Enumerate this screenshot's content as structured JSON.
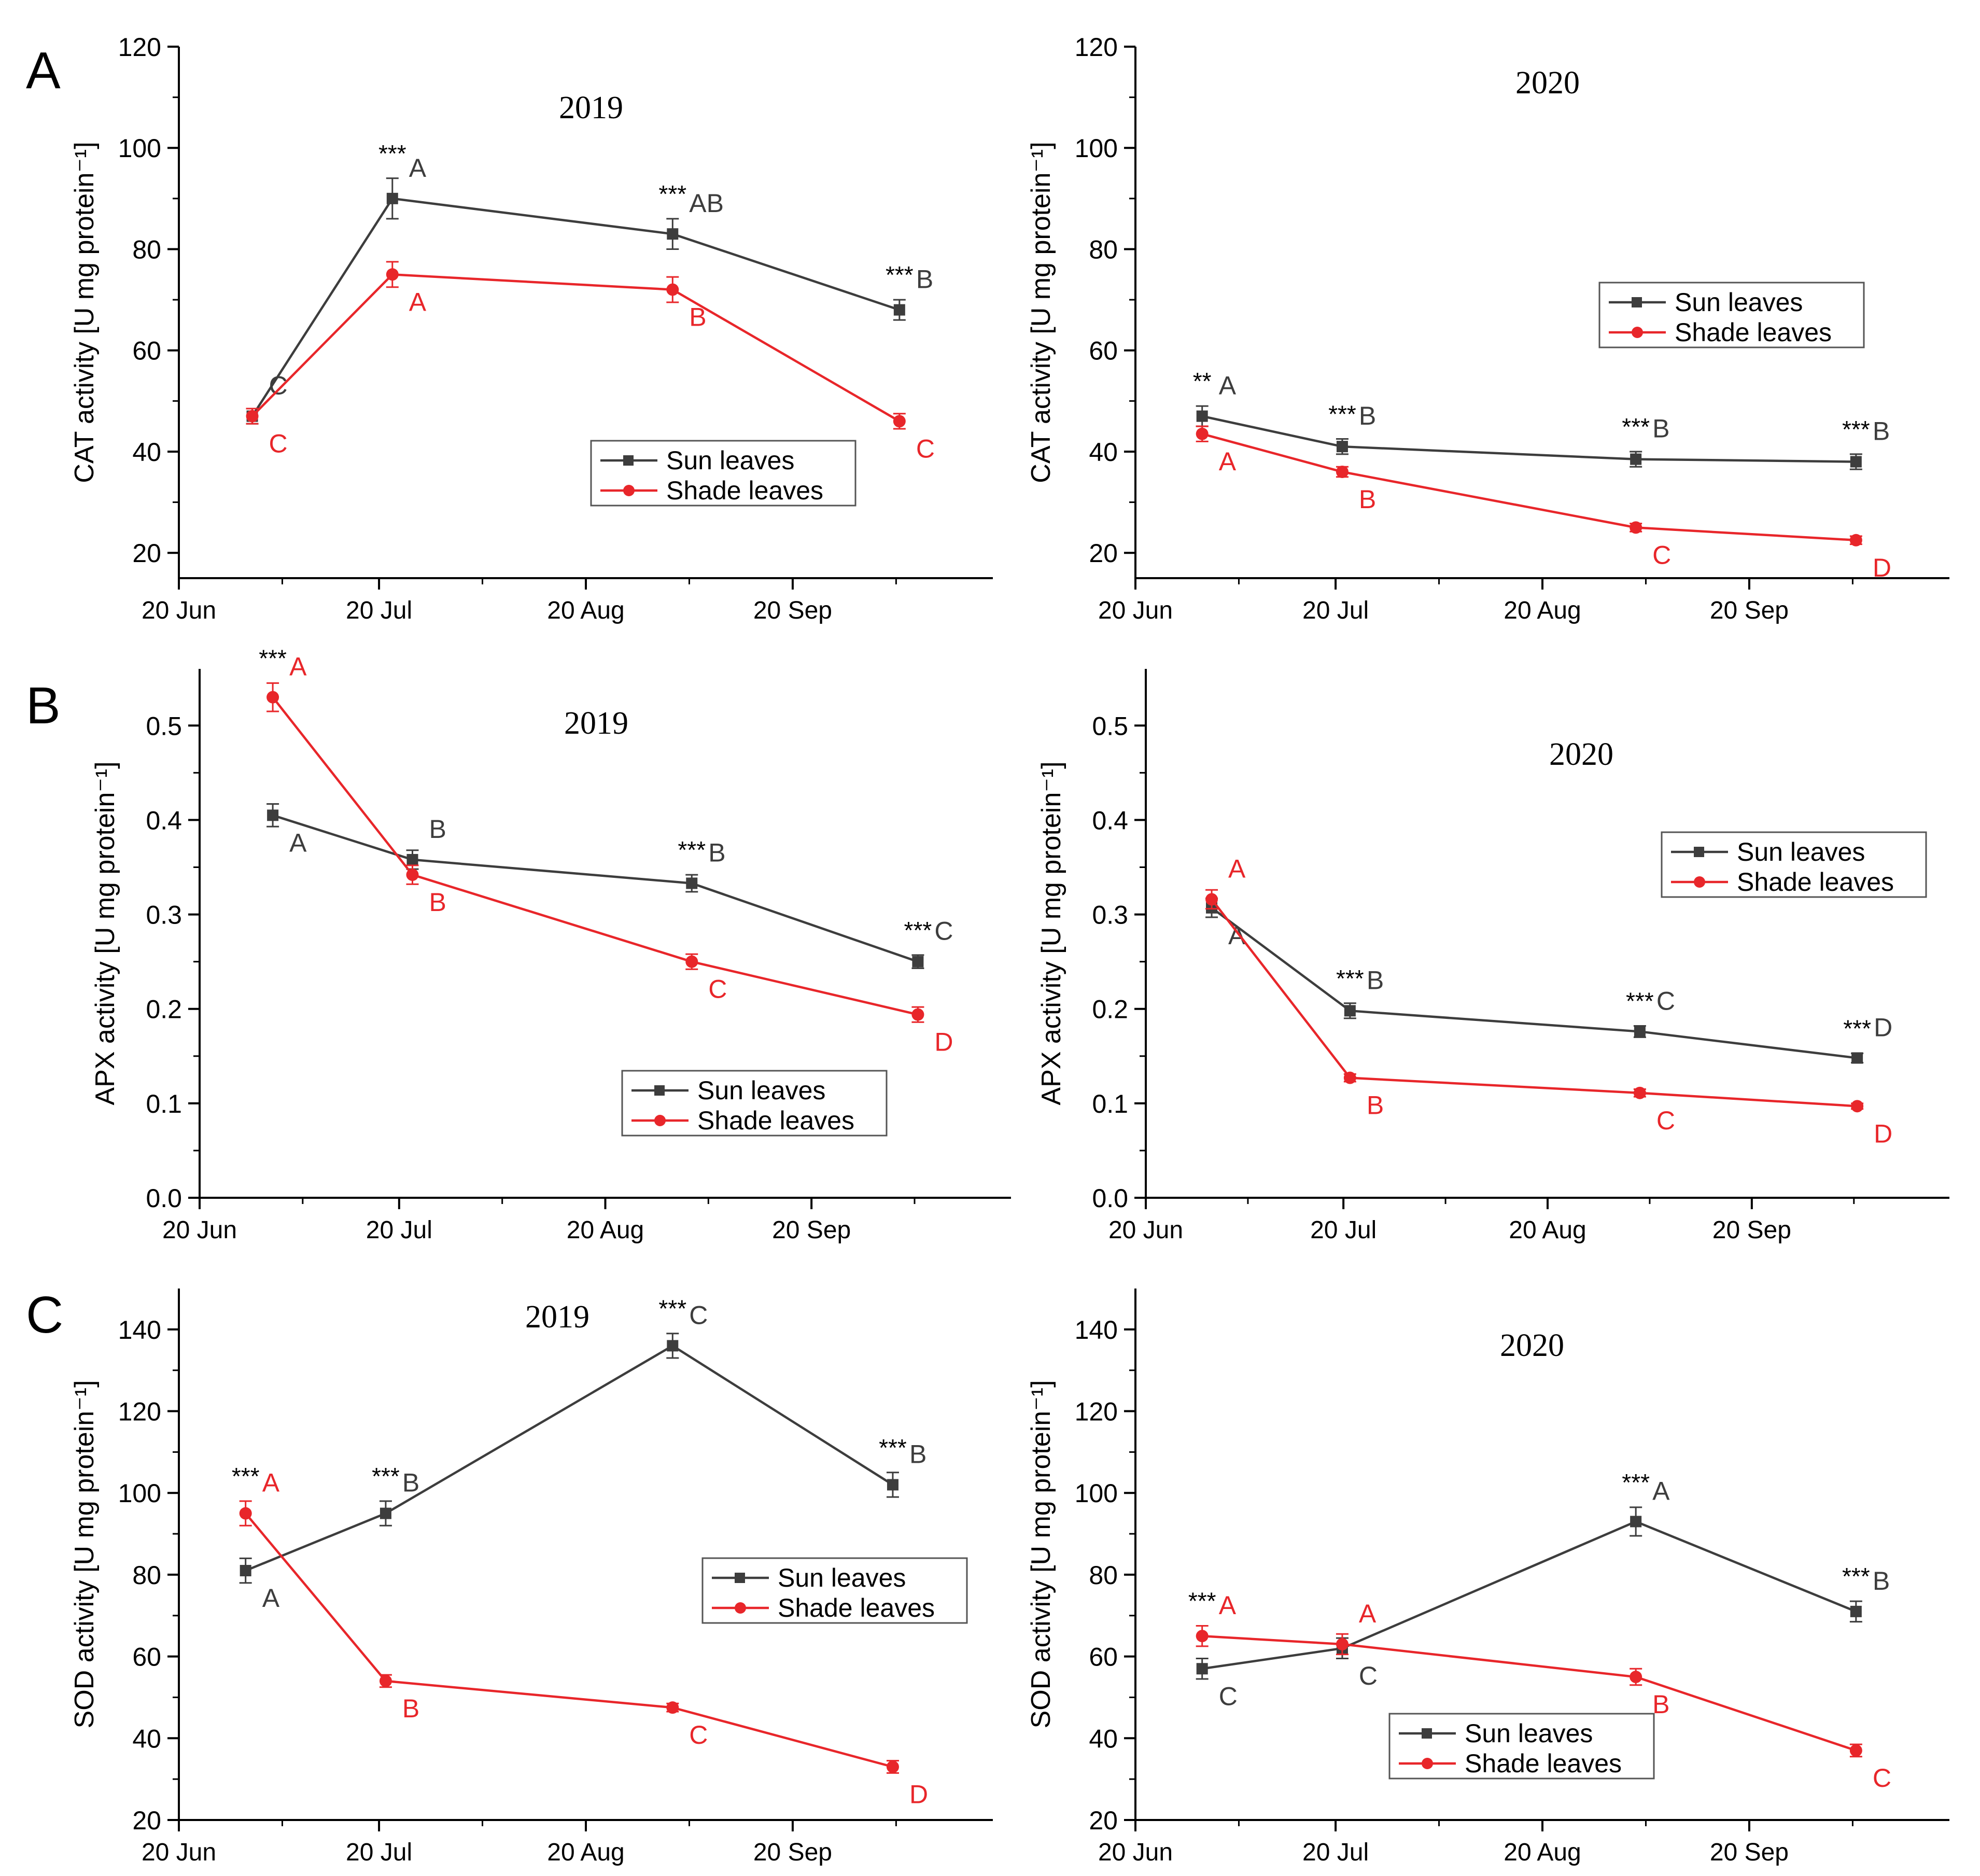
{
  "figure": {
    "row_labels": [
      "A",
      "B",
      "C"
    ],
    "x_tick_labels": [
      "20 Jun",
      "20 Jul",
      "20 Aug",
      "20 Sep"
    ]
  },
  "colors": {
    "sun": "#3d3d3d",
    "shade": "#e8262a",
    "axis": "#000000"
  },
  "chart_data": [
    {
      "id": "cat-2019",
      "type": "line",
      "title": "2019",
      "ylabel": "CAT activity [U mg protein⁻¹]",
      "x": [
        "1 Jul",
        "22 Jul",
        "2 Sep",
        "6 Oct"
      ],
      "ylim": [
        15,
        120
      ],
      "yticks": [
        20,
        40,
        60,
        80,
        100,
        120
      ],
      "legend": {
        "position": "bottom-right"
      },
      "series": [
        {
          "name": "Sun leaves",
          "key": "sun",
          "marker": "square",
          "values": [
            47,
            90,
            83,
            68
          ],
          "errors": [
            1.5,
            4,
            3,
            2
          ],
          "letters": [
            "C",
            "A",
            "AB",
            "B"
          ]
        },
        {
          "name": "Shade leaves",
          "key": "shade",
          "marker": "circle",
          "values": [
            47,
            75,
            72,
            46
          ],
          "errors": [
            1.5,
            2.5,
            2.5,
            1.5
          ],
          "letters": [
            "C",
            "A",
            "B",
            "C"
          ]
        }
      ],
      "significance": [
        "",
        "***",
        "***",
        "***"
      ]
    },
    {
      "id": "cat-2020",
      "type": "line",
      "title": "2020",
      "ylabel": "CAT activity [U mg protein⁻¹]",
      "x": [
        "30 Jun",
        "21 Jul",
        "3 Sep",
        "6 Oct"
      ],
      "ylim": [
        15,
        120
      ],
      "yticks": [
        20,
        40,
        60,
        80,
        100,
        120
      ],
      "legend": {
        "position": "upper-right"
      },
      "series": [
        {
          "name": "Sun leaves",
          "key": "sun",
          "marker": "square",
          "values": [
            47,
            41,
            38.5,
            38
          ],
          "errors": [
            2,
            1.5,
            1.5,
            1.5
          ],
          "letters": [
            "A",
            "B",
            "B",
            "B"
          ]
        },
        {
          "name": "Shade leaves",
          "key": "shade",
          "marker": "circle",
          "values": [
            43.5,
            36,
            25,
            22.5
          ],
          "errors": [
            1.5,
            1,
            0.8,
            0.8
          ],
          "letters": [
            "A",
            "B",
            "C",
            "D"
          ]
        }
      ],
      "significance": [
        "**",
        "***",
        "***",
        "***"
      ]
    },
    {
      "id": "apx-2019",
      "type": "line",
      "title": "2019",
      "ylabel": "APX activity [U mg protein⁻¹]",
      "x": [
        "1 Jul",
        "22 Jul",
        "2 Sep",
        "6 Oct"
      ],
      "ylim": [
        0,
        0.56
      ],
      "yticks": [
        0.0,
        0.1,
        0.2,
        0.3,
        0.4,
        0.5
      ],
      "legend": {
        "position": "bottom-right"
      },
      "series": [
        {
          "name": "Sun leaves",
          "key": "sun",
          "marker": "square",
          "values": [
            0.405,
            0.358,
            0.333,
            0.25
          ],
          "errors": [
            0.012,
            0.01,
            0.009,
            0.007
          ],
          "letters": [
            "A",
            "B",
            "B",
            "C"
          ]
        },
        {
          "name": "Shade leaves",
          "key": "shade",
          "marker": "circle",
          "values": [
            0.53,
            0.342,
            0.25,
            0.194
          ],
          "errors": [
            0.015,
            0.01,
            0.008,
            0.008
          ],
          "letters": [
            "A",
            "B",
            "C",
            "D"
          ]
        }
      ],
      "significance": [
        "***",
        "",
        "***",
        "***"
      ]
    },
    {
      "id": "apx-2020",
      "type": "line",
      "title": "2020",
      "ylabel": "APX activity [U mg protein⁻¹]",
      "x": [
        "30 Jun",
        "21 Jul",
        "3 Sep",
        "6 Oct"
      ],
      "ylim": [
        0,
        0.56
      ],
      "yticks": [
        0.0,
        0.1,
        0.2,
        0.3,
        0.4,
        0.5
      ],
      "legend": {
        "position": "upper-right"
      },
      "series": [
        {
          "name": "Sun leaves",
          "key": "sun",
          "marker": "square",
          "values": [
            0.307,
            0.198,
            0.176,
            0.148
          ],
          "errors": [
            0.01,
            0.008,
            0.006,
            0.005
          ],
          "letters": [
            "A",
            "B",
            "C",
            "D"
          ]
        },
        {
          "name": "Shade leaves",
          "key": "shade",
          "marker": "circle",
          "values": [
            0.316,
            0.127,
            0.111,
            0.097
          ],
          "errors": [
            0.01,
            0.004,
            0.004,
            0.003
          ],
          "letters": [
            "A",
            "B",
            "C",
            "D"
          ]
        }
      ],
      "significance": [
        "",
        "***",
        "***",
        "***"
      ]
    },
    {
      "id": "sod-2019",
      "type": "line",
      "title": "2019",
      "ylabel": "SOD activity [U mg protein⁻¹]",
      "x": [
        "30 Jun",
        "21 Jul",
        "2 Sep",
        "5 Oct"
      ],
      "ylim": [
        20,
        150
      ],
      "yticks": [
        20,
        40,
        60,
        80,
        100,
        120,
        140
      ],
      "legend": {
        "position": "middle-right"
      },
      "series": [
        {
          "name": "Sun leaves",
          "key": "sun",
          "marker": "square",
          "values": [
            81,
            95,
            136,
            102
          ],
          "errors": [
            3,
            3,
            3,
            3
          ],
          "letters": [
            "A",
            "B",
            "C",
            "B"
          ]
        },
        {
          "name": "Shade leaves",
          "key": "shade",
          "marker": "circle",
          "values": [
            95,
            54,
            47.5,
            33
          ],
          "errors": [
            3,
            1.5,
            1,
            1.5
          ],
          "letters": [
            "A",
            "B",
            "C",
            "D"
          ]
        }
      ],
      "significance": [
        "***",
        "***",
        "***",
        "***"
      ]
    },
    {
      "id": "sod-2020",
      "type": "line",
      "title": "2020",
      "ylabel": "SOD activity [U mg protein⁻¹]",
      "x": [
        "30 Jun",
        "21 Jul",
        "3 Sep",
        "6 Oct"
      ],
      "ylim": [
        20,
        150
      ],
      "yticks": [
        20,
        40,
        60,
        80,
        100,
        120,
        140
      ],
      "legend": {
        "position": "bottom-center"
      },
      "series": [
        {
          "name": "Sun leaves",
          "key": "sun",
          "marker": "square",
          "values": [
            57,
            62,
            93,
            71
          ],
          "errors": [
            2.5,
            2.5,
            3.5,
            2.5
          ],
          "letters": [
            "C",
            "C",
            "A",
            "B"
          ]
        },
        {
          "name": "Shade leaves",
          "key": "shade",
          "marker": "circle",
          "values": [
            65,
            63,
            55,
            37
          ],
          "errors": [
            2.5,
            2.5,
            2,
            1.5
          ],
          "letters": [
            "A",
            "A",
            "B",
            "C"
          ]
        }
      ],
      "significance": [
        "***",
        "",
        "***",
        "***"
      ]
    }
  ]
}
